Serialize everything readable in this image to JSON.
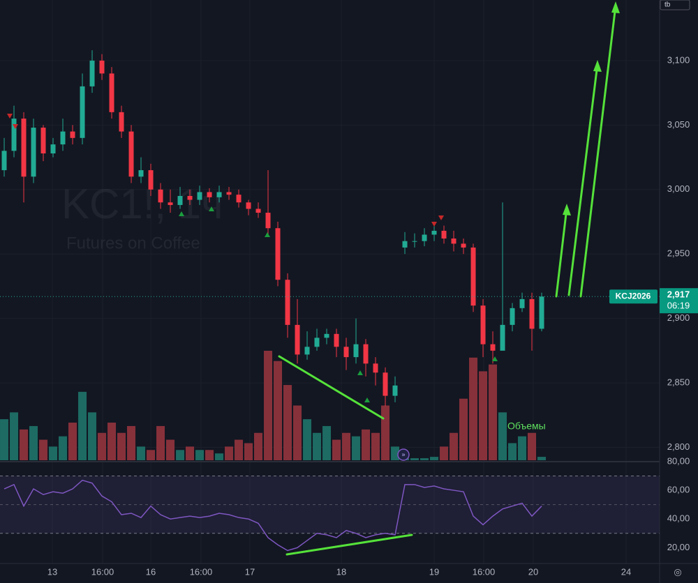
{
  "chart_data": {
    "type": "candlestick",
    "watermark": "KC1!, 1ч",
    "watermark_subtitle": "Futures on Coffee",
    "corner_label": "tb",
    "volume_label": "Объемы",
    "colors": {
      "up": "#22ab94",
      "down": "#f23645",
      "volume_up": "#1d6b63",
      "volume_down": "#87313b",
      "rsi": "#7e57c2"
    },
    "ylim": [
      2790,
      3147
    ],
    "yticks": [
      {
        "value": 2800,
        "label": "2,800"
      },
      {
        "value": 2850,
        "label": "2,850"
      },
      {
        "value": 2900,
        "label": "2,900"
      },
      {
        "value": 2950,
        "label": "2,950"
      },
      {
        "value": 3000,
        "label": "3,000"
      },
      {
        "value": 3050,
        "label": "3,050"
      },
      {
        "value": 3100,
        "label": "3,100"
      }
    ],
    "xlim": [
      -0.43,
      67.07
    ],
    "xticks": [
      {
        "value": 4.93,
        "label": "13"
      },
      {
        "value": 10.07,
        "label": "16:00"
      },
      {
        "value": 15,
        "label": "16"
      },
      {
        "value": 20.14,
        "label": "16:00"
      },
      {
        "value": 25.14,
        "label": "17"
      },
      {
        "value": 34.5,
        "label": "18"
      },
      {
        "value": 44,
        "label": "19"
      },
      {
        "value": 49.07,
        "label": "16:00"
      },
      {
        "value": 54.14,
        "label": "20"
      },
      {
        "value": 63.64,
        "label": "24"
      }
    ],
    "last_price": {
      "symbol": "KCJ2026",
      "value": 2917,
      "label": "2,917",
      "countdown": "06:19"
    },
    "candles": {
      "open": [
        3015,
        3030,
        3055,
        3010,
        3048,
        3028,
        3035,
        3045,
        3040,
        3080,
        3100,
        3090,
        3060,
        3045,
        3010,
        3015,
        3000,
        2990,
        2988,
        2995,
        2992,
        2998,
        2994,
        2998,
        2996,
        2990,
        2985,
        2982,
        2970,
        2930,
        2895,
        2872,
        2878,
        2885,
        2888,
        2878,
        2870,
        2880,
        2865,
        2858,
        2840,
        2955,
        2960,
        2960,
        2965,
        2968,
        2962,
        2958,
        2955,
        2910,
        2880,
        2875,
        2895,
        2908,
        2915,
        2892
      ],
      "high": [
        3040,
        3065,
        3060,
        3055,
        3050,
        3040,
        3055,
        3050,
        3090,
        3108,
        3105,
        3095,
        3065,
        3050,
        3025,
        3020,
        3005,
        3000,
        3002,
        3000,
        3003,
        3001,
        3003,
        3002,
        3000,
        2992,
        2990,
        3015,
        2975,
        2935,
        2915,
        2890,
        2892,
        2892,
        2892,
        2885,
        2900,
        2884,
        2870,
        2862,
        2855,
        2967,
        2966,
        2970,
        2975,
        2972,
        2968,
        2962,
        2958,
        2915,
        2890,
        2990,
        2912,
        2920,
        2920,
        2920
      ],
      "low": [
        3010,
        3025,
        2990,
        3005,
        3022,
        3025,
        3030,
        3035,
        3035,
        3075,
        3085,
        3055,
        3040,
        3005,
        3005,
        2995,
        2985,
        2982,
        2985,
        2988,
        2988,
        2990,
        2990,
        2992,
        2986,
        2980,
        2978,
        2965,
        2925,
        2885,
        2865,
        2868,
        2875,
        2880,
        2870,
        2860,
        2865,
        2855,
        2848,
        2832,
        2835,
        2950,
        2955,
        2956,
        2960,
        2958,
        2952,
        2950,
        2905,
        2870,
        2865,
        2880,
        2890,
        2905,
        2875,
        2890
      ],
      "close": [
        3030,
        3055,
        3010,
        3048,
        3028,
        3035,
        3045,
        3040,
        3080,
        3100,
        3090,
        3060,
        3045,
        3010,
        3015,
        3000,
        2990,
        2988,
        2995,
        2992,
        2998,
        2994,
        2998,
        2996,
        2990,
        2985,
        2982,
        2970,
        2930,
        2895,
        2872,
        2878,
        2885,
        2888,
        2878,
        2870,
        2880,
        2865,
        2858,
        2840,
        2848,
        2960,
        2960,
        2965,
        2968,
        2962,
        2958,
        2955,
        2910,
        2880,
        2875,
        2895,
        2908,
        2915,
        2892,
        2917
      ]
    },
    "volume": [
      60,
      70,
      45,
      50,
      30,
      20,
      35,
      55,
      100,
      70,
      40,
      55,
      40,
      50,
      20,
      15,
      50,
      30,
      15,
      20,
      15,
      15,
      10,
      20,
      30,
      25,
      40,
      160,
      145,
      110,
      80,
      60,
      40,
      50,
      30,
      40,
      35,
      45,
      40,
      80,
      20,
      3,
      3,
      3,
      5,
      20,
      40,
      90,
      150,
      130,
      140,
      70,
      25,
      35,
      40,
      5
    ],
    "rsi": {
      "values": [
        61,
        64,
        49,
        61,
        57,
        59,
        58,
        61,
        67,
        65,
        56,
        52,
        43,
        44,
        41,
        49,
        43,
        40,
        41,
        42,
        41,
        42,
        44,
        43,
        41,
        40,
        37,
        27,
        22,
        18,
        20,
        25,
        30,
        29,
        27,
        32,
        30,
        27,
        29,
        30,
        29,
        64,
        64,
        62,
        63,
        61,
        60,
        59,
        42,
        36,
        42,
        47,
        49,
        51,
        42,
        49
      ],
      "ylim": [
        9,
        78.5
      ],
      "yticks": [
        {
          "value": 20,
          "label": "20,00"
        },
        {
          "value": 40,
          "label": "40,00"
        },
        {
          "value": 60,
          "label": "60,00"
        },
        {
          "value": 80,
          "label": "80,00"
        }
      ],
      "bands": [
        30,
        70
      ],
      "middle": 50
    }
  }
}
